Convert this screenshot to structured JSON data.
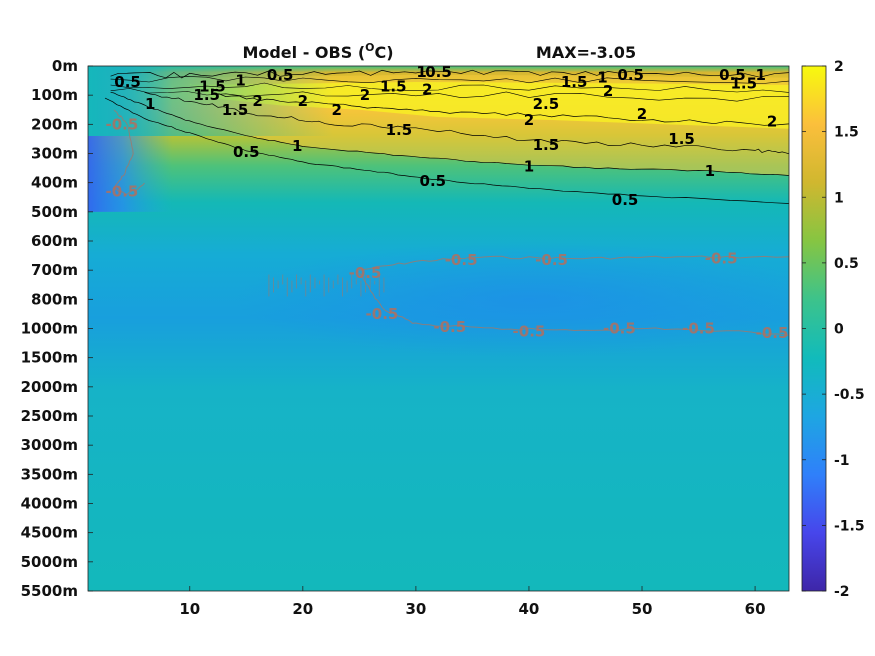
{
  "chart_data": {
    "type": "heatmap",
    "title": "Model - OBS (°C)",
    "title_main": "Model - OBS (",
    "title_sup": "O",
    "title_end": "C)",
    "subtitle": "MAX=-3.05",
    "xlabel": "",
    "ylabel": "",
    "xlim": [
      1,
      63
    ],
    "x_ticks": [
      10,
      20,
      30,
      40,
      50,
      60
    ],
    "x_tick_labels": [
      "10",
      "20",
      "30",
      "40",
      "50",
      "60"
    ],
    "depth_ticks": [
      "0m",
      "100m",
      "200m",
      "300m",
      "400m",
      "500m",
      "600m",
      "700m",
      "800m",
      "1000m",
      "1500m",
      "2000m",
      "2500m",
      "3000m",
      "3500m",
      "4000m",
      "4500m",
      "5000m",
      "5500m"
    ],
    "colorbar": {
      "range": [
        -2,
        2
      ],
      "tick_values": [
        2,
        1.5,
        1,
        0.5,
        0,
        -0.5,
        -1,
        -1.5,
        -2
      ],
      "tick_labels": [
        "2",
        "1.5",
        "1",
        "0.5",
        "0",
        "-0.5",
        "-1",
        "-1.5",
        "-2"
      ],
      "colormap": "parula",
      "colors": [
        "#3e26a8",
        "#4746eb",
        "#2f80fa",
        "#1ea6e2",
        "#11bbbb",
        "#3dc38b",
        "#86c542",
        "#d0b72f",
        "#fbbf3c",
        "#f8fa0d"
      ]
    },
    "contour_labels_positive": [
      {
        "text": "0.5",
        "x": 4.5,
        "depth_index": 0.55
      },
      {
        "text": "1.5",
        "x": 12,
        "depth_index": 0.7
      },
      {
        "text": "1",
        "x": 14.5,
        "depth_index": 0.5
      },
      {
        "text": "0.5",
        "x": 18,
        "depth_index": 0.3
      },
      {
        "text": "1.5",
        "x": 11.5,
        "depth_index": 1.0
      },
      {
        "text": "1",
        "x": 6.5,
        "depth_index": 1.3
      },
      {
        "text": "1.5",
        "x": 14,
        "depth_index": 1.5
      },
      {
        "text": "2",
        "x": 16,
        "depth_index": 1.2
      },
      {
        "text": "2",
        "x": 20,
        "depth_index": 1.2
      },
      {
        "text": "2",
        "x": 23,
        "depth_index": 1.5
      },
      {
        "text": "2",
        "x": 25.5,
        "depth_index": 1.0
      },
      {
        "text": "1.5",
        "x": 28,
        "depth_index": 0.7
      },
      {
        "text": "2",
        "x": 31,
        "depth_index": 0.8
      },
      {
        "text": "1",
        "x": 30.5,
        "depth_index": 0.2
      },
      {
        "text": "0.5",
        "x": 32,
        "depth_index": 0.2
      },
      {
        "text": "1.5",
        "x": 44,
        "depth_index": 0.55
      },
      {
        "text": "1",
        "x": 46.5,
        "depth_index": 0.4
      },
      {
        "text": "0.5",
        "x": 49,
        "depth_index": 0.3
      },
      {
        "text": "2",
        "x": 47,
        "depth_index": 0.85
      },
      {
        "text": "2.5",
        "x": 41.5,
        "depth_index": 1.3
      },
      {
        "text": "2",
        "x": 40,
        "depth_index": 1.85
      },
      {
        "text": "2",
        "x": 50,
        "depth_index": 1.65
      },
      {
        "text": "0.5",
        "x": 58,
        "depth_index": 0.3
      },
      {
        "text": "1",
        "x": 60.5,
        "depth_index": 0.3
      },
      {
        "text": "1.5",
        "x": 59,
        "depth_index": 0.6
      },
      {
        "text": "2",
        "x": 61.5,
        "depth_index": 1.9
      },
      {
        "text": "1.5",
        "x": 28.5,
        "depth_index": 2.2
      },
      {
        "text": "1.5",
        "x": 41.5,
        "depth_index": 2.7
      },
      {
        "text": "1.5",
        "x": 53.5,
        "depth_index": 2.5
      },
      {
        "text": "1",
        "x": 19.5,
        "depth_index": 2.75
      },
      {
        "text": "0.5",
        "x": 15,
        "depth_index": 2.95
      },
      {
        "text": "1",
        "x": 40,
        "depth_index": 3.45
      },
      {
        "text": "1",
        "x": 56,
        "depth_index": 3.6
      },
      {
        "text": "0.5",
        "x": 31.5,
        "depth_index": 3.95
      },
      {
        "text": "0.5",
        "x": 48.5,
        "depth_index": 4.6
      }
    ],
    "contour_labels_negative": [
      {
        "text": "-0.5",
        "x": 4,
        "depth_index": 2.0
      },
      {
        "text": "-0.5",
        "x": 4,
        "depth_index": 4.3
      },
      {
        "text": "-0.5",
        "x": 25.5,
        "depth_index": 7.1
      },
      {
        "text": "-0.5",
        "x": 34,
        "depth_index": 6.65
      },
      {
        "text": "-0.5",
        "x": 42,
        "depth_index": 6.65
      },
      {
        "text": "-0.5",
        "x": 57,
        "depth_index": 6.6
      },
      {
        "text": "-0.5",
        "x": 27,
        "depth_index": 8.5
      },
      {
        "text": "-0.5",
        "x": 33,
        "depth_index": 8.95
      },
      {
        "text": "-0.5",
        "x": 40,
        "depth_index": 9.1
      },
      {
        "text": "-0.5",
        "x": 48,
        "depth_index": 9.0
      },
      {
        "text": "-0.5",
        "x": 55,
        "depth_index": 9.0
      },
      {
        "text": "-0.5",
        "x": 61.5,
        "depth_index": 9.15
      }
    ],
    "contour_lines": [
      {
        "level": 0.5,
        "points": [
          [
            2.5,
            1.1
          ],
          [
            6,
            1.8
          ],
          [
            10,
            2.3
          ],
          [
            15,
            2.9
          ],
          [
            20,
            3.3
          ],
          [
            26,
            3.6
          ],
          [
            32,
            3.9
          ],
          [
            40,
            4.2
          ],
          [
            50,
            4.45
          ],
          [
            63,
            4.7
          ]
        ]
      },
      {
        "level": 1,
        "points": [
          [
            3,
            0.9
          ],
          [
            6,
            1.35
          ],
          [
            10,
            1.9
          ],
          [
            15,
            2.4
          ],
          [
            20,
            2.75
          ],
          [
            28,
            3.05
          ],
          [
            36,
            3.3
          ],
          [
            46,
            3.5
          ],
          [
            56,
            3.6
          ],
          [
            63,
            3.75
          ]
        ]
      },
      {
        "level": 1.5,
        "points": [
          [
            6,
            0.9
          ],
          [
            11,
            1.25
          ],
          [
            16,
            1.65
          ],
          [
            22,
            1.95
          ],
          [
            30,
            2.15
          ],
          [
            40,
            2.55
          ],
          [
            50,
            2.7
          ],
          [
            60,
            2.9
          ],
          [
            63,
            2.95
          ]
        ]
      },
      {
        "level": 2,
        "points": [
          [
            12,
            0.95
          ],
          [
            18,
            1.2
          ],
          [
            25,
            1.35
          ],
          [
            32,
            1.6
          ],
          [
            42,
            1.7
          ],
          [
            52,
            1.85
          ],
          [
            63,
            2.0
          ]
        ]
      },
      {
        "level": 0.5,
        "points": [
          [
            3,
            0.35
          ],
          [
            10,
            0.3
          ],
          [
            20,
            0.25
          ],
          [
            30,
            0.2
          ],
          [
            40,
            0.22
          ],
          [
            50,
            0.25
          ],
          [
            63,
            0.3
          ]
        ]
      }
    ],
    "neg_contour_lines": [
      {
        "level": -0.5,
        "points": [
          [
            25,
            7.0
          ],
          [
            30,
            6.7
          ],
          [
            36,
            6.55
          ],
          [
            44,
            6.6
          ],
          [
            52,
            6.55
          ],
          [
            63,
            6.55
          ]
        ]
      },
      {
        "level": -0.5,
        "points": [
          [
            25,
            7.1
          ],
          [
            27,
            8.3
          ],
          [
            30,
            8.85
          ],
          [
            36,
            9.0
          ],
          [
            44,
            9.05
          ],
          [
            52,
            9.0
          ],
          [
            63,
            9.2
          ]
        ]
      },
      {
        "level": -0.5,
        "points": [
          [
            3.3,
            1.5
          ],
          [
            4.5,
            2.0
          ],
          [
            5,
            3.0
          ],
          [
            4.2,
            3.7
          ],
          [
            3.2,
            4.2
          ],
          [
            4.5,
            4.4
          ],
          [
            6,
            4.05
          ]
        ]
      }
    ]
  }
}
